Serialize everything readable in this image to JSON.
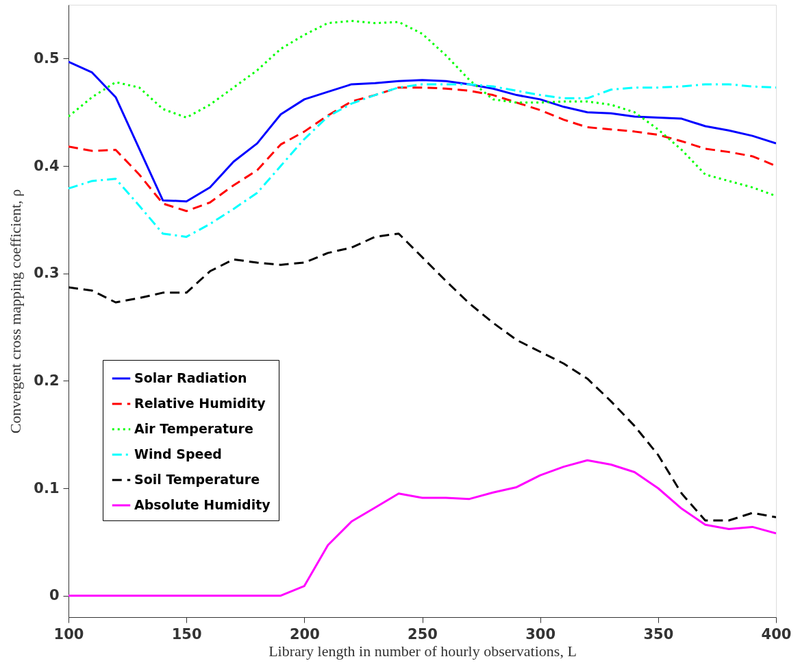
{
  "chart_data": {
    "type": "line",
    "xlabel": "Library length in number of hourly observations, L",
    "ylabel": "Convergent cross mapping coefficient, ρ",
    "x": [
      100,
      110,
      120,
      130,
      140,
      150,
      160,
      170,
      180,
      190,
      200,
      210,
      220,
      230,
      240,
      250,
      260,
      270,
      280,
      290,
      300,
      310,
      320,
      330,
      340,
      350,
      360,
      370,
      380,
      390,
      400
    ],
    "series": [
      {
        "name": "Solar Radiation",
        "color": "#0000ff",
        "line_style": "solid",
        "values": [
          0.497,
          0.487,
          0.464,
          0.416,
          0.368,
          0.367,
          0.38,
          0.404,
          0.421,
          0.448,
          0.462,
          0.469,
          0.476,
          0.477,
          0.479,
          0.48,
          0.479,
          0.476,
          0.472,
          0.466,
          0.462,
          0.455,
          0.45,
          0.449,
          0.446,
          0.445,
          0.444,
          0.437,
          0.433,
          0.428,
          0.421
        ]
      },
      {
        "name": "Relative Humidity",
        "color": "#ff0000",
        "line_style": "dashed",
        "values": [
          0.418,
          0.414,
          0.415,
          0.392,
          0.365,
          0.358,
          0.366,
          0.382,
          0.396,
          0.42,
          0.432,
          0.447,
          0.46,
          0.466,
          0.473,
          0.473,
          0.472,
          0.47,
          0.466,
          0.459,
          0.452,
          0.443,
          0.436,
          0.434,
          0.432,
          0.429,
          0.423,
          0.416,
          0.413,
          0.409,
          0.4
        ]
      },
      {
        "name": "Air Temperature",
        "color": "#00ff00",
        "line_style": "dotted",
        "values": [
          0.446,
          0.464,
          0.478,
          0.473,
          0.453,
          0.445,
          0.457,
          0.473,
          0.489,
          0.509,
          0.522,
          0.533,
          0.535,
          0.533,
          0.534,
          0.523,
          0.503,
          0.48,
          0.462,
          0.459,
          0.459,
          0.46,
          0.46,
          0.457,
          0.45,
          0.434,
          0.415,
          0.392,
          0.386,
          0.38,
          0.372
        ]
      },
      {
        "name": "Wind Speed",
        "color": "#00ffff",
        "line_style": "dashdot",
        "values": [
          0.379,
          0.386,
          0.388,
          0.363,
          0.337,
          0.334,
          0.346,
          0.36,
          0.375,
          0.4,
          0.425,
          0.446,
          0.458,
          0.466,
          0.473,
          0.476,
          0.476,
          0.476,
          0.474,
          0.47,
          0.466,
          0.463,
          0.463,
          0.471,
          0.473,
          0.473,
          0.474,
          0.476,
          0.476,
          0.474,
          0.473
        ]
      },
      {
        "name": "Soil Temperature",
        "color": "#000000",
        "line_style": "dashed",
        "values": [
          0.287,
          0.284,
          0.273,
          0.277,
          0.282,
          0.282,
          0.302,
          0.313,
          0.31,
          0.308,
          0.31,
          0.319,
          0.324,
          0.334,
          0.337,
          0.315,
          0.293,
          0.272,
          0.254,
          0.238,
          0.227,
          0.216,
          0.202,
          0.181,
          0.158,
          0.131,
          0.095,
          0.07,
          0.07,
          0.077,
          0.073
        ]
      },
      {
        "name": "Absolute Humidity",
        "color": "#ff00ff",
        "line_style": "solid",
        "values": [
          0,
          0,
          0,
          0,
          0,
          0,
          0,
          0,
          0,
          0,
          0.009,
          0.047,
          0.069,
          0.082,
          0.095,
          0.091,
          0.091,
          0.09,
          0.096,
          0.101,
          0.112,
          0.12,
          0.126,
          0.122,
          0.115,
          0.1,
          0.081,
          0.066,
          0.062,
          0.064,
          0.058
        ]
      }
    ],
    "xlim": [
      100,
      400
    ],
    "xticks": [
      100,
      150,
      200,
      250,
      300,
      350,
      400
    ],
    "ylim": [
      -0.02,
      0.55
    ],
    "yticks": [
      0,
      0.1,
      0.2,
      0.3,
      0.4,
      0.5
    ],
    "grid": false,
    "legend": "left",
    "marker": "none"
  }
}
